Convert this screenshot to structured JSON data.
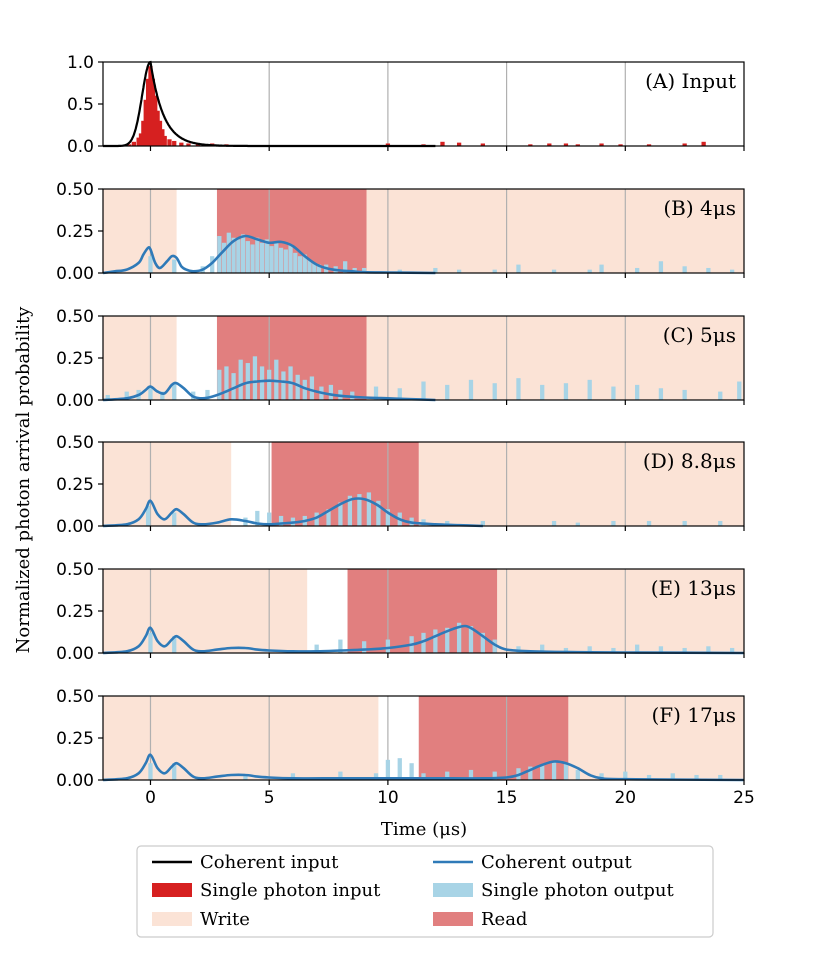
{
  "figure": {
    "ylabel": "Normalized photon arrival probability",
    "xlabel": "Time (μs)",
    "xlim": [
      -2,
      25
    ],
    "xticks": [
      "0",
      "5",
      "10",
      "15",
      "20",
      "25"
    ],
    "xtick_values": [
      0,
      5,
      10,
      15,
      20,
      25
    ],
    "grid_vertical": true
  },
  "legend": {
    "placement": "below",
    "items": [
      {
        "label": "Coherent input",
        "kind": "line",
        "color": "#000000"
      },
      {
        "label": "Single photon input",
        "kind": "patch",
        "color": "#d62020"
      },
      {
        "label": "Write",
        "kind": "patch",
        "color": "#fbe3d6"
      },
      {
        "label": "Coherent output",
        "kind": "line",
        "color": "#2f7ab8"
      },
      {
        "label": "Single photon output",
        "kind": "patch",
        "color": "#a8d4e6"
      },
      {
        "label": "Read",
        "kind": "patch",
        "color": "#e17f7f"
      }
    ]
  },
  "colors": {
    "coherent_input": "#000000",
    "single_photon_input": "#d62020",
    "write": "#fbe3d6",
    "read": "#e17f7f",
    "coherent_output": "#2f7ab8",
    "single_photon_output": "#a8d4e6",
    "grid": "#b0b0b0"
  },
  "chart_data": [
    {
      "type": "area",
      "panel": "A",
      "label": "(A) Input",
      "ylim": [
        0,
        1.0
      ],
      "yticks": [
        "0.0",
        "0.5",
        "1.0"
      ],
      "ytick_values": [
        0,
        0.5,
        1.0
      ],
      "write_windows": [],
      "read_windows": [],
      "coherent_input": {
        "peak_time": 0,
        "peak": 1.0,
        "rise_tau": 0.35,
        "decay_tau": 0.55
      },
      "single_photon_input": {
        "x": [
          -0.9,
          -0.7,
          -0.5,
          -0.4,
          -0.3,
          -0.2,
          -0.1,
          0.0,
          0.1,
          0.2,
          0.3,
          0.4,
          0.5,
          0.6,
          0.8,
          1.0,
          1.3,
          1.6,
          2.0,
          2.6,
          3.2,
          10.0,
          11.5,
          12.3,
          13.0,
          14.0,
          16.0,
          16.8,
          17.5,
          18.0,
          19.0,
          19.8,
          21.0,
          22.5,
          23.3
        ],
        "values": [
          0.02,
          0.05,
          0.1,
          0.15,
          0.3,
          0.55,
          0.8,
          0.95,
          0.8,
          0.6,
          0.42,
          0.3,
          0.2,
          0.12,
          0.08,
          0.06,
          0.04,
          0.03,
          0.02,
          0.03,
          0.02,
          0.03,
          0.02,
          0.05,
          0.04,
          0.03,
          0.02,
          0.03,
          0.03,
          0.02,
          0.03,
          0.02,
          0.02,
          0.03,
          0.05
        ]
      }
    },
    {
      "type": "area",
      "panel": "B",
      "label": "(B) 4μs",
      "ylim": [
        0,
        0.5
      ],
      "yticks": [
        "0.00",
        "0.25",
        "0.50"
      ],
      "ytick_values": [
        0,
        0.25,
        0.5
      ],
      "write_windows": [
        [
          -2,
          1.1
        ],
        [
          9.1,
          25
        ]
      ],
      "read_windows": [
        [
          2.8,
          9.1
        ]
      ],
      "coherent_output": {
        "x": [
          -2,
          -1.5,
          -1,
          -0.5,
          -0.3,
          -0.1,
          0,
          0.2,
          0.4,
          0.7,
          0.9,
          1.1,
          1.3,
          1.5,
          1.8,
          2.2,
          2.6,
          3.0,
          3.5,
          4.0,
          4.5,
          5.0,
          5.5,
          6.0,
          6.5,
          7.0,
          7.5,
          8.0,
          8.5,
          9.0,
          10.0,
          12.0
        ],
        "values": [
          0.0,
          0.01,
          0.02,
          0.06,
          0.11,
          0.15,
          0.14,
          0.06,
          0.03,
          0.07,
          0.1,
          0.09,
          0.04,
          0.02,
          0.01,
          0.02,
          0.06,
          0.12,
          0.19,
          0.22,
          0.2,
          0.18,
          0.185,
          0.16,
          0.1,
          0.05,
          0.025,
          0.015,
          0.01,
          0.005,
          0.003,
          0.0
        ]
      },
      "single_photon_output": {
        "x": [
          0.0,
          1.0,
          2.2,
          2.6,
          2.9,
          3.1,
          3.3,
          3.5,
          3.7,
          3.9,
          4.1,
          4.3,
          4.5,
          4.7,
          4.9,
          5.1,
          5.3,
          5.5,
          5.7,
          5.9,
          6.1,
          6.3,
          6.5,
          6.7,
          6.9,
          7.1,
          7.4,
          7.8,
          8.2,
          8.6,
          9.0,
          10.5,
          12.0,
          13.0,
          14.5,
          15.5,
          17.0,
          18.5,
          19.0,
          20.5,
          21.5,
          22.5,
          23.5,
          24.5
        ],
        "values": [
          0.1,
          0.08,
          0.04,
          0.1,
          0.22,
          0.18,
          0.24,
          0.21,
          0.2,
          0.23,
          0.19,
          0.17,
          0.21,
          0.18,
          0.2,
          0.16,
          0.18,
          0.15,
          0.14,
          0.17,
          0.12,
          0.1,
          0.11,
          0.08,
          0.06,
          0.05,
          0.05,
          0.04,
          0.07,
          0.03,
          0.03,
          0.02,
          0.03,
          0.02,
          0.02,
          0.05,
          0.02,
          0.02,
          0.05,
          0.03,
          0.07,
          0.04,
          0.03,
          0.02
        ]
      }
    },
    {
      "type": "area",
      "panel": "C",
      "label": "(C) 5μs",
      "ylim": [
        0,
        0.5
      ],
      "yticks": [
        "0.00",
        "0.25",
        "0.50"
      ],
      "ytick_values": [
        0,
        0.25,
        0.5
      ],
      "write_windows": [
        [
          -2,
          1.1
        ],
        [
          9.1,
          25
        ]
      ],
      "read_windows": [
        [
          2.8,
          9.1
        ]
      ],
      "coherent_output": {
        "x": [
          -2,
          -1,
          -0.5,
          -0.2,
          0,
          0.3,
          0.6,
          0.9,
          1.1,
          1.4,
          1.8,
          2.2,
          2.6,
          3.0,
          3.5,
          4.0,
          4.5,
          5.0,
          5.5,
          6.0,
          6.5,
          7.0,
          7.5,
          8.0,
          9.0,
          10.0,
          11.0,
          12.0
        ],
        "values": [
          0.0,
          0.01,
          0.03,
          0.06,
          0.08,
          0.05,
          0.04,
          0.09,
          0.1,
          0.07,
          0.02,
          0.01,
          0.02,
          0.04,
          0.07,
          0.1,
          0.11,
          0.115,
          0.11,
          0.1,
          0.07,
          0.05,
          0.035,
          0.025,
          0.015,
          0.01,
          0.005,
          0.0
        ]
      },
      "single_photon_output": {
        "x": [
          -1.8,
          -1.0,
          -0.5,
          0.0,
          0.5,
          1.0,
          1.8,
          2.4,
          2.9,
          3.2,
          3.5,
          3.8,
          4.1,
          4.4,
          4.7,
          5.0,
          5.3,
          5.6,
          5.9,
          6.2,
          6.5,
          6.8,
          7.2,
          7.6,
          8.0,
          8.5,
          9.5,
          10.5,
          11.5,
          12.5,
          13.5,
          14.5,
          15.5,
          16.5,
          17.5,
          18.5,
          19.5,
          20.5,
          21.5,
          22.5,
          24.0,
          24.8
        ],
        "values": [
          0.03,
          0.05,
          0.06,
          0.08,
          0.05,
          0.1,
          0.05,
          0.06,
          0.18,
          0.2,
          0.16,
          0.24,
          0.22,
          0.26,
          0.2,
          0.18,
          0.24,
          0.17,
          0.2,
          0.15,
          0.12,
          0.14,
          0.08,
          0.09,
          0.06,
          0.05,
          0.08,
          0.07,
          0.11,
          0.09,
          0.12,
          0.1,
          0.13,
          0.09,
          0.1,
          0.12,
          0.08,
          0.09,
          0.07,
          0.06,
          0.05,
          0.11
        ]
      }
    },
    {
      "type": "area",
      "panel": "D",
      "label": "(D) 8.8μs",
      "ylim": [
        0,
        0.5
      ],
      "yticks": [
        "0.00",
        "0.25",
        "0.50"
      ],
      "ytick_values": [
        0,
        0.25,
        0.5
      ],
      "write_windows": [
        [
          -2,
          3.4
        ],
        [
          11.3,
          25
        ]
      ],
      "read_windows": [
        [
          5.1,
          11.3
        ]
      ],
      "coherent_output": {
        "x": [
          -2,
          -1,
          -0.5,
          -0.2,
          0,
          0.3,
          0.6,
          0.9,
          1.1,
          1.4,
          1.8,
          2.2,
          2.8,
          3.4,
          4.0,
          4.5,
          5.0,
          5.5,
          6.0,
          6.5,
          7.0,
          7.5,
          8.0,
          8.5,
          9.0,
          9.5,
          10.0,
          10.5,
          11.0,
          12.0,
          13.0,
          14.0
        ],
        "values": [
          0.0,
          0.01,
          0.04,
          0.1,
          0.15,
          0.07,
          0.04,
          0.08,
          0.1,
          0.07,
          0.02,
          0.01,
          0.02,
          0.04,
          0.03,
          0.015,
          0.01,
          0.015,
          0.02,
          0.03,
          0.05,
          0.09,
          0.13,
          0.16,
          0.16,
          0.13,
          0.08,
          0.04,
          0.02,
          0.01,
          0.005,
          0.0
        ]
      },
      "single_photon_output": {
        "x": [
          -0.1,
          1.0,
          4.0,
          4.5,
          5.0,
          5.5,
          6.0,
          6.5,
          7.0,
          7.5,
          8.0,
          8.4,
          8.8,
          9.2,
          9.6,
          10.0,
          10.5,
          11.0,
          11.5,
          12.5,
          14.0,
          17.0,
          18.0,
          19.5,
          21.0,
          22.5,
          24.0
        ],
        "values": [
          0.12,
          0.08,
          0.05,
          0.09,
          0.08,
          0.06,
          0.05,
          0.06,
          0.08,
          0.1,
          0.14,
          0.18,
          0.19,
          0.2,
          0.15,
          0.1,
          0.08,
          0.05,
          0.04,
          0.03,
          0.03,
          0.03,
          0.02,
          0.03,
          0.03,
          0.03,
          0.03
        ]
      }
    },
    {
      "type": "area",
      "panel": "E",
      "label": "(E) 13μs",
      "ylim": [
        0,
        0.5
      ],
      "yticks": [
        "0.00",
        "0.25",
        "0.50"
      ],
      "ytick_values": [
        0,
        0.25,
        0.5
      ],
      "write_windows": [
        [
          -2,
          6.6
        ],
        [
          14.6,
          25
        ]
      ],
      "read_windows": [
        [
          8.3,
          14.6
        ]
      ],
      "coherent_output": {
        "x": [
          -2,
          -1,
          -0.5,
          -0.2,
          0,
          0.3,
          0.6,
          0.9,
          1.1,
          1.4,
          1.8,
          2.2,
          2.8,
          3.4,
          4.0,
          4.5,
          5.0,
          6.0,
          7.0,
          8.0,
          9.0,
          10.0,
          11.0,
          11.5,
          12.0,
          12.5,
          13.0,
          13.3,
          13.6,
          14.0,
          14.5,
          15.0,
          16.0,
          18.0,
          20.0,
          25.0
        ],
        "values": [
          0.0,
          0.01,
          0.04,
          0.1,
          0.15,
          0.07,
          0.04,
          0.08,
          0.1,
          0.07,
          0.02,
          0.01,
          0.02,
          0.03,
          0.03,
          0.02,
          0.015,
          0.01,
          0.01,
          0.015,
          0.02,
          0.03,
          0.05,
          0.07,
          0.1,
          0.13,
          0.155,
          0.16,
          0.14,
          0.1,
          0.05,
          0.02,
          0.01,
          0.005,
          0.003,
          0.0
        ]
      },
      "single_photon_output": {
        "x": [
          0.0,
          1.0,
          7.0,
          8.0,
          9.0,
          10.0,
          11.0,
          11.5,
          12.0,
          12.5,
          13.0,
          13.5,
          14.0,
          14.5,
          15.5,
          16.5,
          17.5,
          18.5,
          19.5,
          20.5,
          21.5,
          22.5,
          23.5,
          24.5
        ],
        "values": [
          0.12,
          0.1,
          0.05,
          0.08,
          0.07,
          0.08,
          0.1,
          0.12,
          0.14,
          0.15,
          0.18,
          0.16,
          0.12,
          0.08,
          0.04,
          0.05,
          0.03,
          0.04,
          0.03,
          0.05,
          0.04,
          0.03,
          0.04,
          0.03
        ]
      }
    },
    {
      "type": "area",
      "panel": "F",
      "label": "(F) 17μs",
      "ylim": [
        0,
        0.5
      ],
      "yticks": [
        "0.00",
        "0.25",
        "0.50"
      ],
      "ytick_values": [
        0,
        0.25,
        0.5
      ],
      "write_windows": [
        [
          -2,
          9.6
        ],
        [
          17.6,
          25
        ]
      ],
      "read_windows": [
        [
          11.3,
          17.6
        ]
      ],
      "coherent_output": {
        "x": [
          -2,
          -1,
          -0.5,
          -0.2,
          0,
          0.3,
          0.6,
          0.9,
          1.1,
          1.4,
          1.8,
          2.2,
          2.8,
          3.4,
          4.0,
          4.5,
          5.0,
          6.0,
          8.0,
          10.0,
          12.0,
          14.0,
          15.0,
          15.5,
          16.0,
          16.5,
          17.0,
          17.5,
          18.0,
          18.5,
          19.0,
          20.0,
          25.0
        ],
        "values": [
          0.0,
          0.01,
          0.04,
          0.1,
          0.15,
          0.07,
          0.04,
          0.08,
          0.1,
          0.07,
          0.02,
          0.01,
          0.02,
          0.03,
          0.03,
          0.02,
          0.015,
          0.01,
          0.01,
          0.01,
          0.01,
          0.01,
          0.015,
          0.03,
          0.06,
          0.09,
          0.11,
          0.1,
          0.07,
          0.03,
          0.01,
          0.005,
          0.0
        ]
      },
      "single_photon_output": {
        "x": [
          0.0,
          1.0,
          4.0,
          6.0,
          8.0,
          9.5,
          10.0,
          10.5,
          11.0,
          11.5,
          12.5,
          13.5,
          14.5,
          15.5,
          16.0,
          16.5,
          17.0,
          17.5,
          18.0,
          19.0,
          20.0,
          21.0,
          22.0,
          23.0,
          24.0
        ],
        "values": [
          0.1,
          0.1,
          0.03,
          0.04,
          0.05,
          0.04,
          0.12,
          0.13,
          0.1,
          0.04,
          0.05,
          0.06,
          0.05,
          0.07,
          0.08,
          0.09,
          0.11,
          0.1,
          0.06,
          0.04,
          0.05,
          0.03,
          0.04,
          0.03,
          0.03
        ]
      }
    }
  ]
}
